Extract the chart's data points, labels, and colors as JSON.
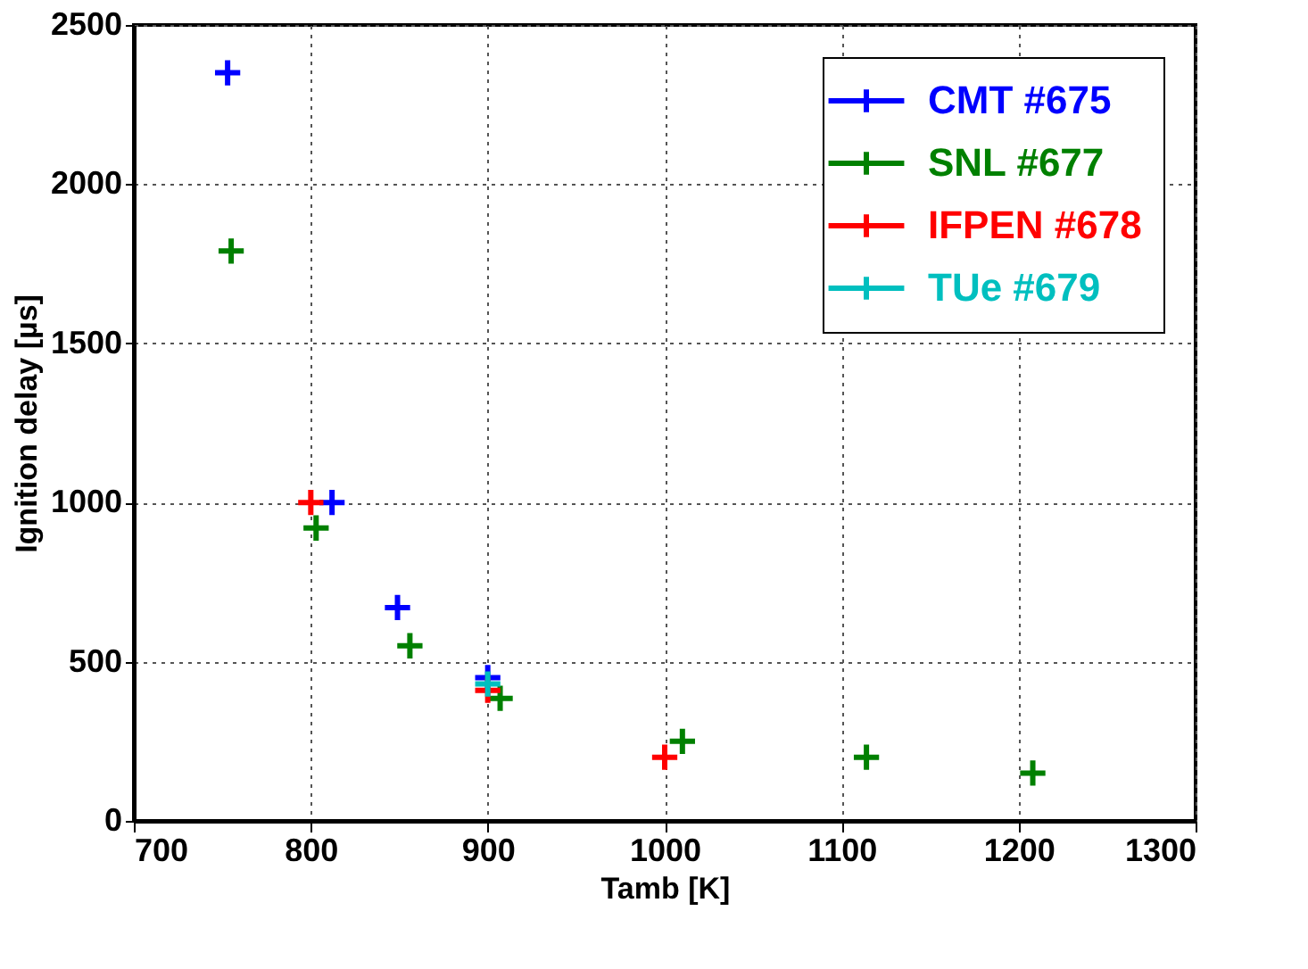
{
  "chart_data": {
    "type": "scatter",
    "xlabel": "Tamb [K]",
    "ylabel": "Ignition delay [µs]",
    "xlim": [
      700,
      1300
    ],
    "xticks": [
      700,
      800,
      900,
      1000,
      1100,
      1200,
      1300
    ],
    "ylim": [
      0,
      2500
    ],
    "yticks": [
      0,
      500,
      1000,
      1500,
      2000,
      2500
    ],
    "grid": true,
    "legend": "top right",
    "marker": "cross",
    "series": [
      {
        "name": "CMT #675",
        "color": "#0000ff",
        "x": [
          753,
          812,
          849,
          900
        ],
        "values": [
          2350,
          1000,
          670,
          450
        ]
      },
      {
        "name": "SNL #677",
        "color": "#008000",
        "x": [
          755,
          803,
          856,
          907,
          1010,
          1114,
          1208
        ],
        "values": [
          1790,
          920,
          550,
          385,
          250,
          200,
          150
        ]
      },
      {
        "name": "IFPEN #678",
        "color": "#ff0000",
        "x": [
          800,
          900,
          1000
        ],
        "values": [
          1000,
          410,
          200
        ]
      },
      {
        "name": "TUe #679",
        "color": "#00bfbf",
        "x": [
          900
        ],
        "values": [
          430
        ]
      }
    ]
  }
}
